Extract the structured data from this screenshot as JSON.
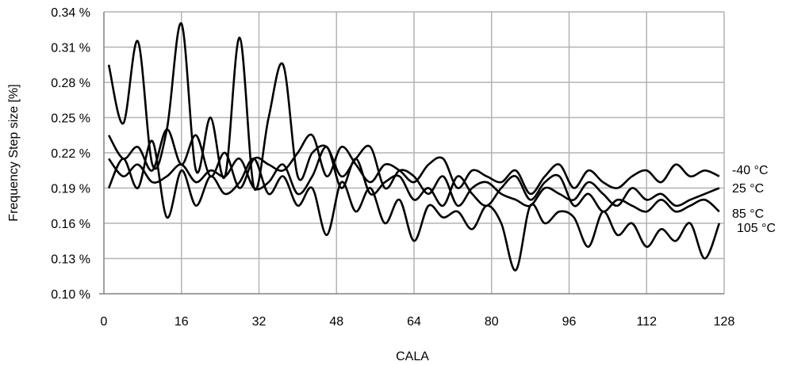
{
  "chart_data": {
    "type": "line",
    "xlabel": "CALA",
    "ylabel": "Frequency Step size [%]",
    "xlim": [
      0,
      128
    ],
    "ylim": [
      0.1,
      0.34
    ],
    "x_ticks": [
      "0",
      "16",
      "32",
      "48",
      "64",
      "80",
      "96",
      "112",
      "128"
    ],
    "y_ticks": [
      "0.10 %",
      "0.13 %",
      "0.16 %",
      "0.19 %",
      "0.22 %",
      "0.25 %",
      "0.28 %",
      "0.31 %",
      "0.34 %"
    ],
    "grid": true,
    "legend_placement": "right-end labels",
    "series": [
      {
        "name": "-40 °C",
        "x": [
          1,
          4,
          7,
          10,
          13,
          16,
          19,
          22,
          25,
          28,
          31,
          34,
          37,
          40,
          43,
          46,
          49,
          52,
          55,
          58,
          61,
          64,
          67,
          70,
          73,
          76,
          79,
          82,
          85,
          88,
          91,
          94,
          97,
          100,
          103,
          106,
          109,
          112,
          115,
          118,
          121,
          124,
          127
        ],
        "values": [
          0.235,
          0.215,
          0.225,
          0.205,
          0.24,
          0.21,
          0.235,
          0.2,
          0.22,
          0.19,
          0.215,
          0.21,
          0.205,
          0.22,
          0.235,
          0.2,
          0.225,
          0.21,
          0.195,
          0.21,
          0.205,
          0.195,
          0.21,
          0.215,
          0.19,
          0.205,
          0.2,
          0.195,
          0.205,
          0.185,
          0.2,
          0.21,
          0.19,
          0.205,
          0.195,
          0.19,
          0.2,
          0.205,
          0.195,
          0.21,
          0.2,
          0.205,
          0.2
        ]
      },
      {
        "name": "25 °C",
        "x": [
          1,
          4,
          7,
          10,
          13,
          16,
          19,
          22,
          25,
          28,
          31,
          34,
          37,
          40,
          43,
          46,
          49,
          52,
          55,
          58,
          61,
          64,
          67,
          70,
          73,
          76,
          79,
          82,
          85,
          88,
          91,
          94,
          97,
          100,
          103,
          106,
          109,
          112,
          115,
          118,
          121,
          124,
          127
        ],
        "values": [
          0.295,
          0.245,
          0.315,
          0.21,
          0.24,
          0.33,
          0.205,
          0.25,
          0.2,
          0.318,
          0.19,
          0.25,
          0.295,
          0.2,
          0.22,
          0.225,
          0.2,
          0.215,
          0.225,
          0.19,
          0.205,
          0.2,
          0.185,
          0.2,
          0.175,
          0.19,
          0.195,
          0.185,
          0.18,
          0.175,
          0.19,
          0.185,
          0.18,
          0.195,
          0.185,
          0.175,
          0.19,
          0.18,
          0.185,
          0.175,
          0.18,
          0.185,
          0.19
        ]
      },
      {
        "name": "85 °C",
        "x": [
          1,
          4,
          7,
          10,
          13,
          16,
          19,
          22,
          25,
          28,
          31,
          34,
          37,
          40,
          43,
          46,
          49,
          52,
          55,
          58,
          61,
          64,
          67,
          70,
          73,
          76,
          79,
          82,
          85,
          88,
          91,
          94,
          97,
          100,
          103,
          106,
          109,
          112,
          115,
          118,
          121,
          124,
          127
        ],
        "values": [
          0.215,
          0.2,
          0.21,
          0.195,
          0.2,
          0.21,
          0.195,
          0.205,
          0.2,
          0.215,
          0.19,
          0.195,
          0.21,
          0.185,
          0.2,
          0.225,
          0.19,
          0.215,
          0.185,
          0.195,
          0.2,
          0.18,
          0.19,
          0.175,
          0.2,
          0.185,
          0.175,
          0.19,
          0.2,
          0.18,
          0.195,
          0.2,
          0.175,
          0.185,
          0.17,
          0.18,
          0.175,
          0.17,
          0.18,
          0.17,
          0.175,
          0.18,
          0.17
        ]
      },
      {
        "name": "105 °C",
        "x": [
          1,
          4,
          7,
          10,
          13,
          16,
          19,
          22,
          25,
          28,
          31,
          34,
          37,
          40,
          43,
          46,
          49,
          52,
          55,
          58,
          61,
          64,
          67,
          70,
          73,
          76,
          79,
          82,
          85,
          88,
          91,
          94,
          97,
          100,
          103,
          106,
          109,
          112,
          115,
          118,
          121,
          124,
          127
        ],
        "values": [
          0.19,
          0.215,
          0.19,
          0.23,
          0.165,
          0.205,
          0.175,
          0.2,
          0.185,
          0.195,
          0.215,
          0.185,
          0.2,
          0.175,
          0.19,
          0.15,
          0.195,
          0.17,
          0.19,
          0.16,
          0.18,
          0.145,
          0.175,
          0.165,
          0.17,
          0.155,
          0.175,
          0.16,
          0.12,
          0.175,
          0.16,
          0.17,
          0.165,
          0.14,
          0.17,
          0.15,
          0.16,
          0.14,
          0.155,
          0.145,
          0.16,
          0.13,
          0.16
        ]
      }
    ]
  }
}
